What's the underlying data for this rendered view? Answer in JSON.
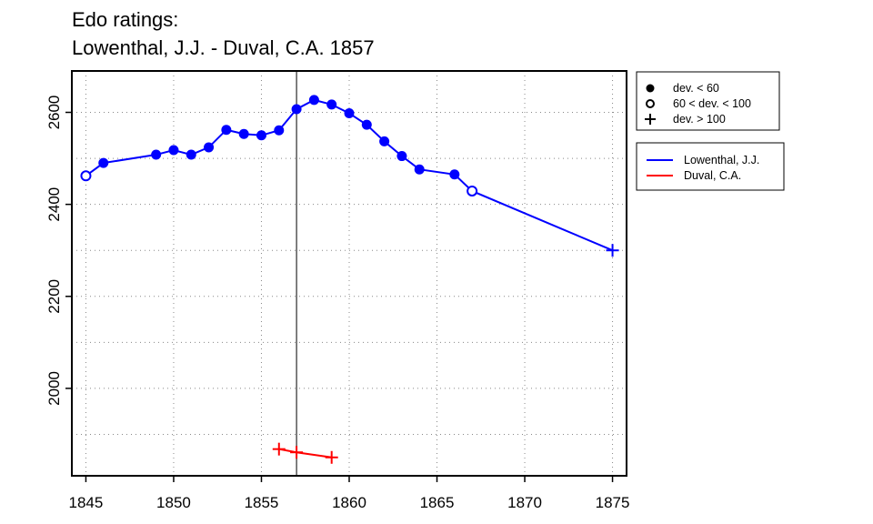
{
  "chart_data": {
    "type": "line",
    "title": "Edo ratings:",
    "subtitle": "Lowenthal, J.J. - Duval, C.A. 1857",
    "xlabel": "",
    "ylabel": "",
    "xlim": [
      1844.2,
      1875.8
    ],
    "ylim": [
      1810,
      2690
    ],
    "x_ticks": [
      1845,
      1850,
      1855,
      1860,
      1865,
      1870,
      1875
    ],
    "y_ticks": [
      2000,
      2200,
      2400,
      2600
    ],
    "x_grid": [
      1845,
      1850,
      1855,
      1860,
      1865,
      1870,
      1875
    ],
    "y_grid": [
      1900,
      2000,
      2100,
      2200,
      2300,
      2400,
      2500,
      2600
    ],
    "grid": true,
    "event_year": 1857,
    "marker_legend": [
      {
        "symbol": "filled",
        "label": "dev. < 60"
      },
      {
        "symbol": "open",
        "label": "60 < dev. < 100"
      },
      {
        "symbol": "plus",
        "label": "dev. > 100"
      }
    ],
    "series": [
      {
        "name": "Lowenthal, J.J.",
        "color": "#0000ff",
        "points": [
          {
            "x": 1845,
            "y": 2462,
            "m": "open"
          },
          {
            "x": 1846,
            "y": 2490,
            "m": "filled"
          },
          {
            "x": 1849,
            "y": 2508,
            "m": "filled"
          },
          {
            "x": 1850,
            "y": 2518,
            "m": "filled"
          },
          {
            "x": 1851,
            "y": 2508,
            "m": "filled"
          },
          {
            "x": 1852,
            "y": 2524,
            "m": "filled"
          },
          {
            "x": 1853,
            "y": 2562,
            "m": "filled"
          },
          {
            "x": 1854,
            "y": 2553,
            "m": "filled"
          },
          {
            "x": 1855,
            "y": 2550,
            "m": "filled"
          },
          {
            "x": 1856,
            "y": 2561,
            "m": "filled"
          },
          {
            "x": 1857,
            "y": 2607,
            "m": "filled"
          },
          {
            "x": 1858,
            "y": 2627,
            "m": "filled"
          },
          {
            "x": 1859,
            "y": 2617,
            "m": "filled"
          },
          {
            "x": 1860,
            "y": 2598,
            "m": "filled"
          },
          {
            "x": 1861,
            "y": 2573,
            "m": "filled"
          },
          {
            "x": 1862,
            "y": 2537,
            "m": "filled"
          },
          {
            "x": 1863,
            "y": 2505,
            "m": "filled"
          },
          {
            "x": 1864,
            "y": 2476,
            "m": "filled"
          },
          {
            "x": 1866,
            "y": 2465,
            "m": "filled"
          },
          {
            "x": 1867,
            "y": 2429,
            "m": "open"
          },
          {
            "x": 1875,
            "y": 2300,
            "m": "plus"
          }
        ]
      },
      {
        "name": "Duval, C.A.",
        "color": "#ff0000",
        "points": [
          {
            "x": 1856,
            "y": 1868,
            "m": "plus"
          },
          {
            "x": 1857,
            "y": 1861,
            "m": "plus"
          },
          {
            "x": 1859,
            "y": 1850,
            "m": "plus"
          }
        ]
      }
    ]
  }
}
